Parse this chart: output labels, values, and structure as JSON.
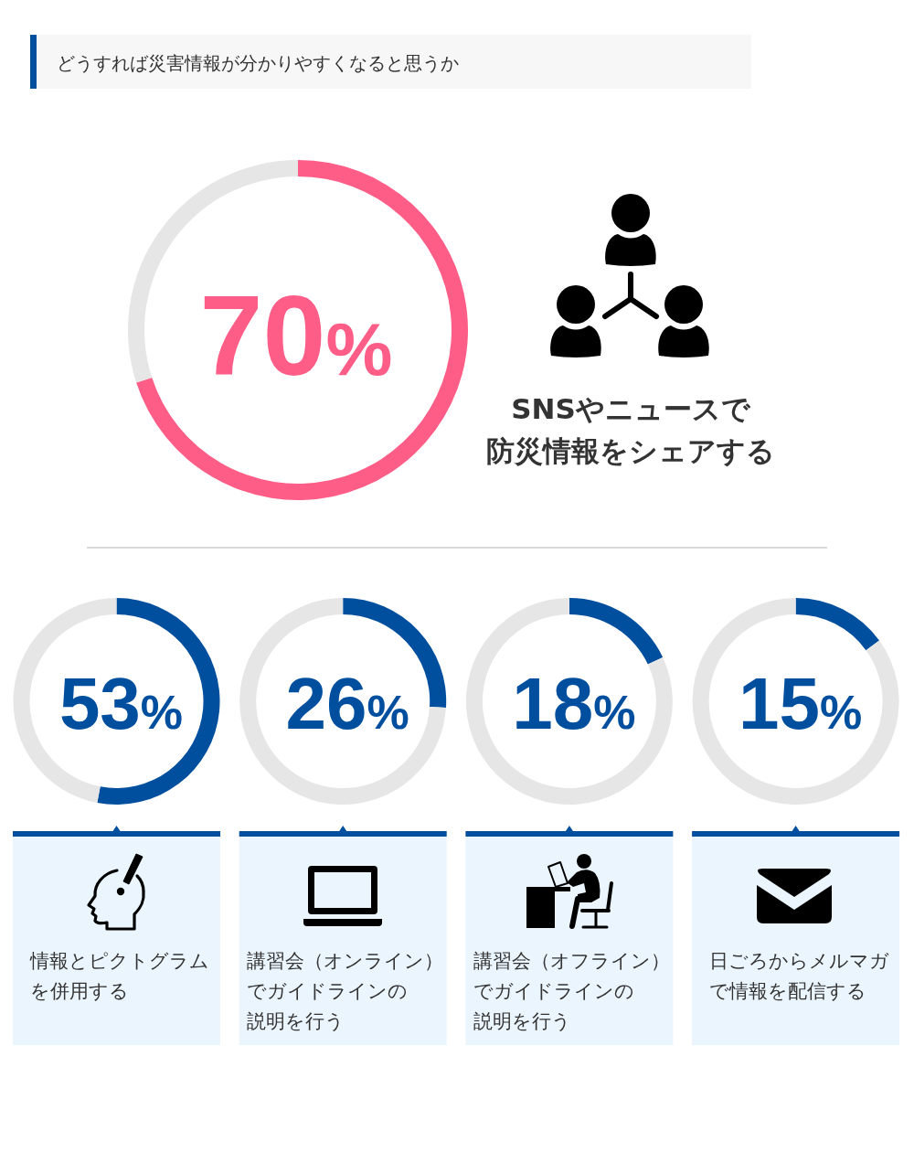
{
  "chart_data": [
    {
      "type": "donut",
      "title": "どうすれば災害情報が分かりやすくなると思うか",
      "categories": [
        "SNSやニュースで防災情報をシェアする",
        null
      ],
      "values": [
        70,
        30
      ],
      "colors": [
        "#fe5d87",
        "#e6e6e6"
      ],
      "value_labels": [
        "70%",
        null
      ]
    },
    {
      "type": "donut",
      "title": "情報とピクトグラムを併用する",
      "categories": [
        null,
        null
      ],
      "values": [
        53,
        47
      ],
      "colors": [
        "#004f9f",
        "#e6e6e6"
      ],
      "value_labels": [
        "53%",
        null
      ]
    },
    {
      "type": "donut",
      "title": "講習会（オンライン）でガイドラインの説明を行う",
      "categories": [
        null,
        null
      ],
      "values": [
        26,
        74
      ],
      "colors": [
        "#004f9f",
        "#e6e6e6"
      ],
      "value_labels": [
        "26%",
        null
      ]
    },
    {
      "type": "donut",
      "title": "講習会（オフライン）でガイドラインの説明を行う",
      "categories": [
        null,
        null
      ],
      "values": [
        18,
        82
      ],
      "colors": [
        "#004f9f",
        "#e6e6e6"
      ],
      "value_labels": [
        "18%",
        null
      ]
    },
    {
      "type": "donut",
      "title": "日ごろからメルマガで情報を配信する",
      "categories": [
        null,
        null
      ],
      "values": [
        15,
        85
      ],
      "colors": [
        "#004f9f",
        "#e6e6e6"
      ],
      "value_labels": [
        "15%",
        null
      ]
    }
  ]
}
